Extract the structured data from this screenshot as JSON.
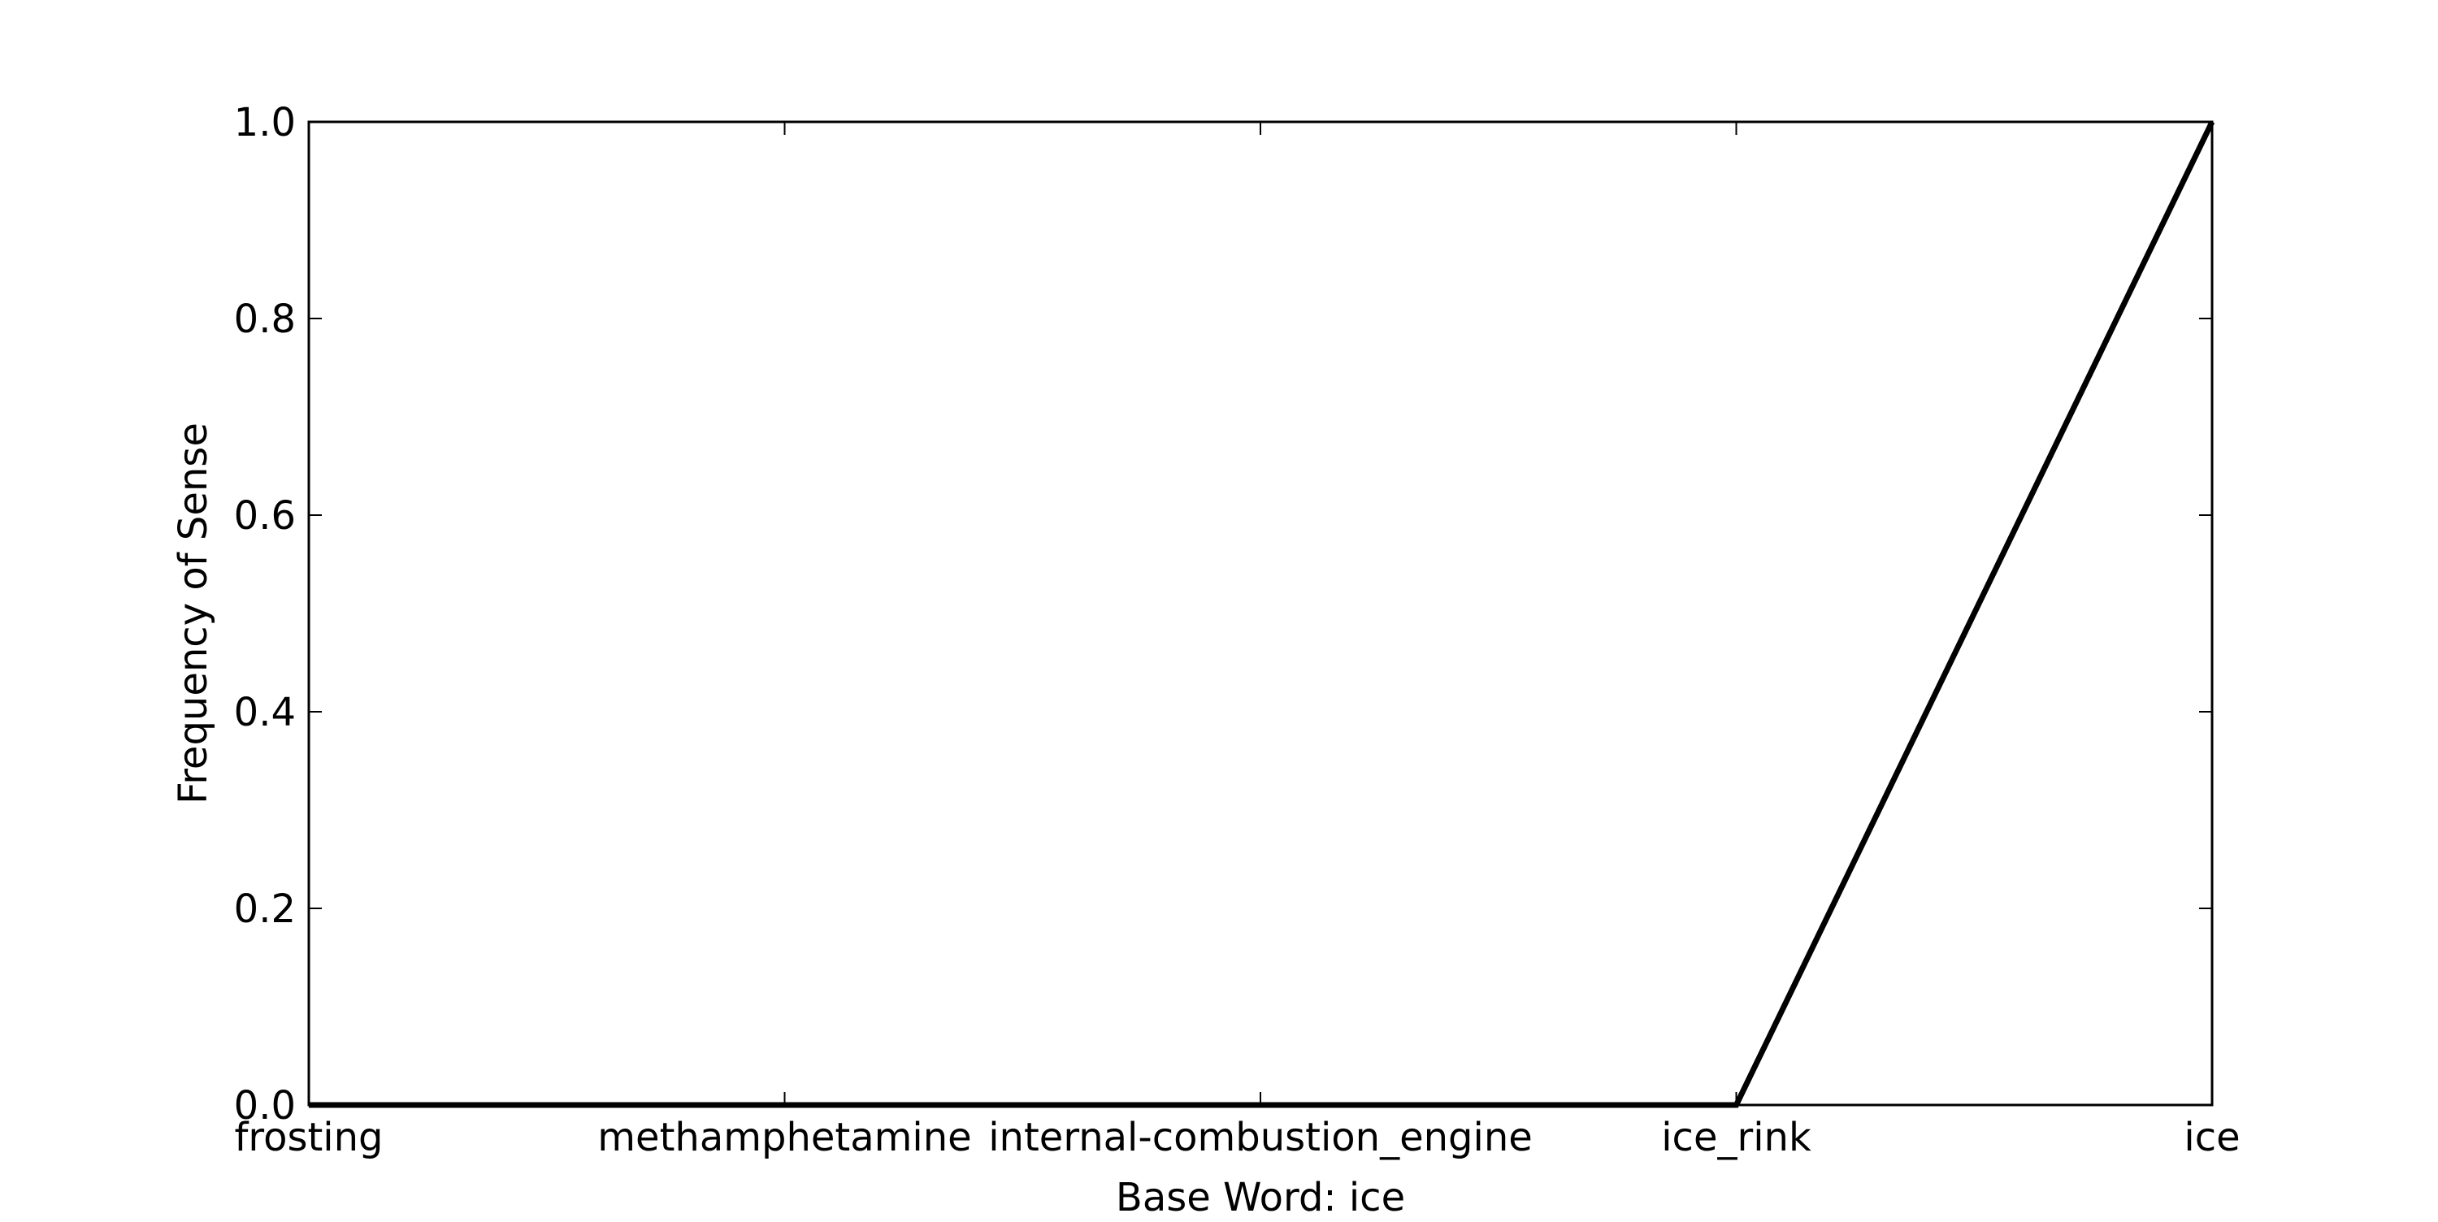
{
  "chart_data": {
    "type": "line",
    "title": "",
    "xlabel": "Base Word: ice",
    "ylabel": "Frequency of Sense",
    "categories": [
      "frosting",
      "methamphetamine",
      "internal-combustion_engine",
      "ice_rink",
      "ice"
    ],
    "series": [
      {
        "values": [
          0.0,
          0.0,
          0.0,
          0.0,
          1.0
        ]
      }
    ],
    "ylim": [
      0.0,
      1.0
    ],
    "yticks": [
      "0.0",
      "0.2",
      "0.4",
      "0.6",
      "0.8",
      "1.0"
    ],
    "grid": false,
    "legend": "none",
    "line_color": "#000000"
  }
}
